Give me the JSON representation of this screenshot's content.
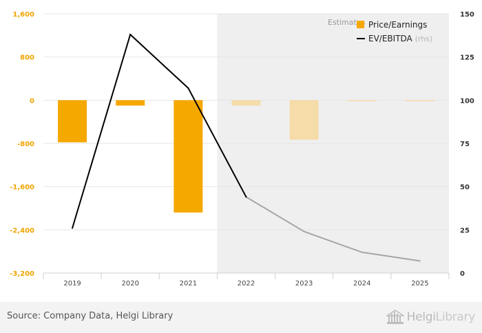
{
  "chart_data": {
    "type": "bar",
    "categories": [
      "2019",
      "2020",
      "2021",
      "2022",
      "2023",
      "2024",
      "2025"
    ],
    "series": [
      {
        "name": "Price/Earnings",
        "kind": "bar",
        "axis": "left",
        "values": [
          -780,
          -100,
          -2080,
          -100,
          -730,
          -10,
          -10
        ],
        "color": "#f5a800",
        "estimate_color": "#f5dca8"
      },
      {
        "name": "EV/EBITDA",
        "kind": "line",
        "axis": "right",
        "values": [
          26,
          138,
          107,
          44,
          24,
          12,
          7
        ],
        "color": "#000000",
        "estimate_color": "#a6a6a6"
      }
    ],
    "estimate_from_index": 3,
    "estimate_label": "Estimates",
    "rhs_note": "(rhs)",
    "y_left": {
      "ticks": [
        "1,600",
        "800",
        "0",
        "-800",
        "-1,600",
        "-2,400",
        "-3,200"
      ],
      "lim": [
        -3200,
        1600
      ]
    },
    "y_right": {
      "ticks": [
        "150",
        "125",
        "100",
        "75",
        "50",
        "25",
        "0"
      ],
      "lim": [
        0,
        150
      ]
    },
    "grid": true,
    "legend_position": "top-right"
  },
  "footer": {
    "source": "Source: Company Data, Helgi Library",
    "logo_brand": "Helgi",
    "logo_suffix": "Library"
  }
}
